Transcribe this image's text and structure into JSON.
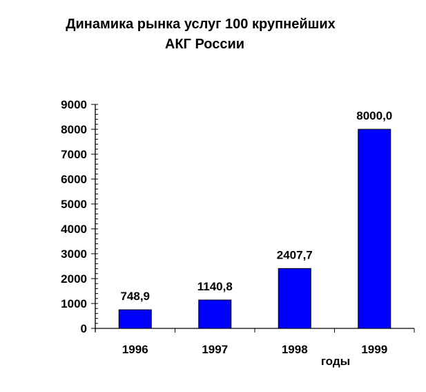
{
  "chart_data": {
    "type": "bar",
    "title_lines": [
      "Динамика рынка услуг 100 крупнейших",
      "АКГ России"
    ],
    "categories": [
      "1996",
      "1997",
      "1998",
      "1999"
    ],
    "values": [
      748.9,
      1140.8,
      2407.7,
      8000.0
    ],
    "data_labels": [
      "748,9",
      "1140,8",
      "2407,7",
      "8000,0"
    ],
    "xlabel": "годы",
    "ylabel": "",
    "ylim": [
      0,
      9000
    ],
    "yticks": [
      "0",
      "1000",
      "2000",
      "3000",
      "4000",
      "5000",
      "6000",
      "7000",
      "8000",
      "9000"
    ],
    "minor_tick_step": 200,
    "grid": false,
    "legend": "none",
    "bar_color": "#0000FF"
  }
}
